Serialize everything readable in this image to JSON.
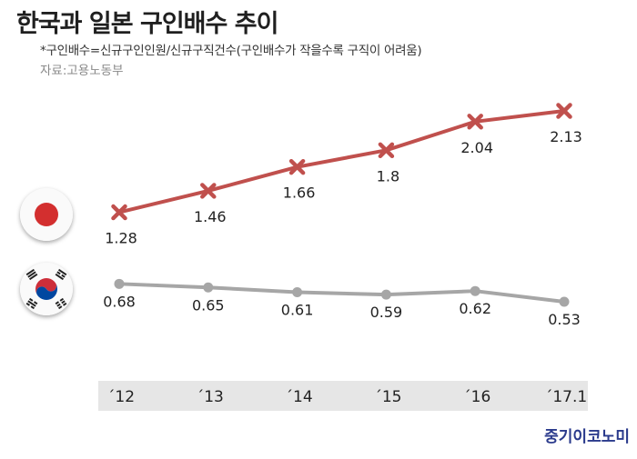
{
  "title": "한국과 일본 구인배수  추이",
  "note": "*구인배수=신규구인인원/신규구직건수(구인배수가 작을수록 구직이 어려움)",
  "source": "자료:고용노동부",
  "brand": "중기이코노미",
  "flags": {
    "japan": "japan-flag-icon",
    "korea": "korea-flag-icon"
  },
  "colors": {
    "japan": "#c0504d",
    "korea": "#a6a6a6",
    "axis_band": "#e6e6e6",
    "brand": "#2a3a8c"
  },
  "chart_data": {
    "type": "line",
    "categories": [
      "´12",
      "´13",
      "´14",
      "´15",
      "´16",
      "´17.1"
    ],
    "series": [
      {
        "country": "japan",
        "marker": "x",
        "values": [
          1.28,
          1.46,
          1.66,
          1.8,
          2.04,
          2.13
        ],
        "labels": [
          "1.28",
          "1.46",
          "1.66",
          "1.8",
          "2.04",
          "2.13"
        ]
      },
      {
        "country": "korea",
        "marker": "circle",
        "values": [
          0.68,
          0.65,
          0.61,
          0.59,
          0.62,
          0.53
        ],
        "labels": [
          "0.68",
          "0.65",
          "0.61",
          "0.59",
          "0.62",
          "0.53"
        ]
      }
    ],
    "xlabel": "",
    "ylabel": "",
    "grid": false,
    "legend": "flag icons at left"
  }
}
